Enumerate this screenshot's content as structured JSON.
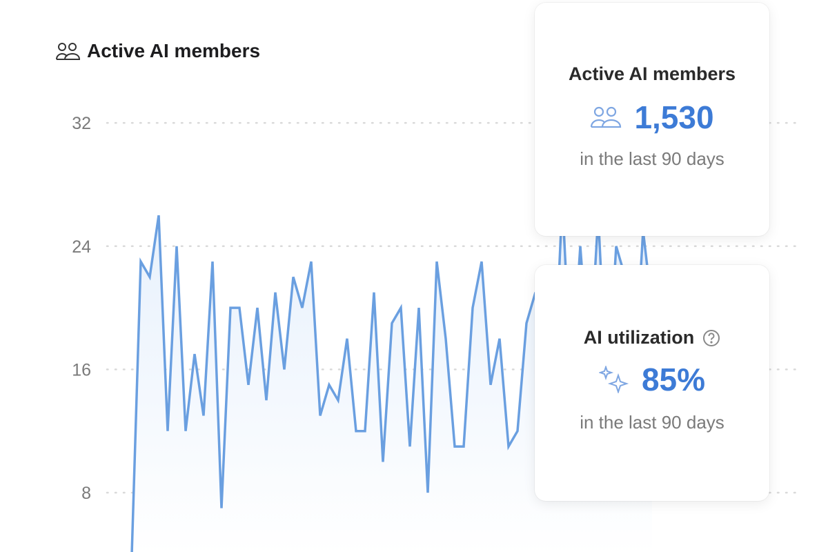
{
  "header": {
    "title": "Active AI members",
    "icon": "people-icon"
  },
  "cards": [
    {
      "title": "Active AI members",
      "icon": "people-icon",
      "value": "1,530",
      "subtitle": "in the last 90 days"
    },
    {
      "title": "AI utilization",
      "help_icon": "question-circle-icon",
      "icon": "sparkles-icon",
      "value": "85%",
      "subtitle": "in the last 90 days"
    }
  ],
  "colors": {
    "line": "#6a9fe0",
    "fill": "#eaf3fd",
    "value": "#3d7bd6",
    "grid": "#d9d9d9"
  },
  "chart_data": {
    "type": "area",
    "title": "Active AI members",
    "yticks": [
      "8",
      "16",
      "24",
      "32"
    ],
    "ylim": [
      0,
      32
    ],
    "grid": true,
    "grid_style": "dotted",
    "values": [
      4,
      23,
      22,
      26,
      12,
      24,
      12,
      17,
      13,
      23,
      7,
      20,
      20,
      15,
      20,
      14,
      21,
      16,
      22,
      20,
      23,
      13,
      15,
      14,
      18,
      12,
      12,
      21,
      10,
      19,
      20,
      11,
      20,
      8,
      23,
      18,
      11,
      11,
      20,
      23,
      15,
      18,
      11,
      12,
      19,
      21,
      13,
      14,
      27,
      15,
      24,
      16,
      26,
      14,
      24,
      22,
      15,
      25,
      20
    ]
  }
}
